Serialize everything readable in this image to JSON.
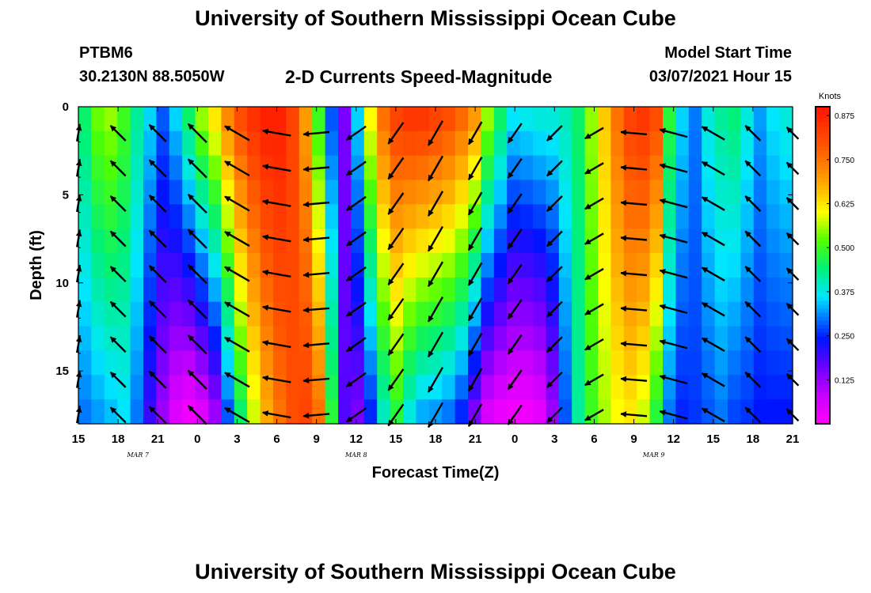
{
  "header": {
    "title": "University of Southern Mississippi Ocean Cube",
    "station_id": "PTBM6",
    "coordinates": "30.2130N 88.5050W",
    "subtitle": "2-D Currents Speed-Magnitude",
    "model_start_label": "Model Start Time",
    "model_start_value": "03/07/2021 Hour 15"
  },
  "footer": {
    "title": "University of Southern Mississippi Ocean Cube"
  },
  "chart_data": {
    "type": "heatmap",
    "title": "2-D Currents Speed-Magnitude",
    "xlabel": "Forecast Time(Z)",
    "ylabel": "Depth (ft)",
    "x_tick_labels": [
      "15",
      "18",
      "21",
      "0",
      "3",
      "6",
      "9",
      "12",
      "15",
      "18",
      "21",
      "0",
      "3",
      "6",
      "9",
      "12",
      "15",
      "18",
      "21"
    ],
    "date_labels": [
      {
        "label": "MAR 7",
        "tick_index": 1.5
      },
      {
        "label": "MAR 8",
        "tick_index": 7
      },
      {
        "label": "MAR 9",
        "tick_index": 14.5
      }
    ],
    "x_range_hours": [
      0,
      54
    ],
    "y_ticks": [
      0,
      5,
      10,
      15
    ],
    "ylim": [
      0,
      18
    ],
    "y_inverted": true,
    "colorbar": {
      "label": "Knots",
      "ticks": [
        0.125,
        0.25,
        0.375,
        0.5,
        0.625,
        0.75,
        0.875
      ],
      "range": [
        0.0,
        0.9
      ]
    },
    "depths_ft": [
      0,
      1.5,
      3,
      4.5,
      6,
      7.5,
      9,
      10.5,
      12,
      13.5,
      15,
      16.5,
      18
    ],
    "speed_hours": [
      0,
      1,
      2,
      3,
      4,
      5,
      6,
      7,
      8,
      9,
      10,
      11,
      12,
      13,
      14,
      15,
      16,
      17,
      18,
      19,
      20,
      21,
      22,
      23,
      24,
      25,
      26,
      27,
      28,
      29,
      30,
      31,
      32,
      33,
      34,
      35,
      36,
      37,
      38,
      39,
      40,
      41,
      42,
      43,
      44,
      45,
      46,
      47,
      48,
      49,
      50,
      51,
      52,
      53,
      54
    ],
    "speed_surface": [
      0.45,
      0.53,
      0.55,
      0.5,
      0.42,
      0.35,
      0.28,
      0.35,
      0.45,
      0.55,
      0.62,
      0.72,
      0.8,
      0.85,
      0.88,
      0.88,
      0.82,
      0.7,
      0.5,
      0.28,
      0.15,
      0.35,
      0.6,
      0.75,
      0.82,
      0.84,
      0.84,
      0.82,
      0.8,
      0.76,
      0.7,
      0.55,
      0.45,
      0.36,
      0.37,
      0.38,
      0.38,
      0.4,
      0.45,
      0.55,
      0.65,
      0.75,
      0.82,
      0.84,
      0.8,
      0.48,
      0.35,
      0.3,
      0.38,
      0.42,
      0.44,
      0.38,
      0.32,
      0.36,
      0.38
    ],
    "speed_bottom": [
      0.3,
      0.32,
      0.34,
      0.36,
      0.3,
      0.2,
      0.12,
      0.05,
      0.02,
      0.05,
      0.12,
      0.28,
      0.45,
      0.58,
      0.68,
      0.75,
      0.8,
      0.82,
      0.75,
      0.48,
      0.18,
      0.15,
      0.25,
      0.4,
      0.48,
      0.38,
      0.33,
      0.32,
      0.3,
      0.25,
      0.15,
      0.06,
      0.03,
      0.02,
      0.02,
      0.04,
      0.12,
      0.28,
      0.42,
      0.5,
      0.56,
      0.6,
      0.62,
      0.58,
      0.48,
      0.3,
      0.25,
      0.26,
      0.28,
      0.3,
      0.27,
      0.26,
      0.24,
      0.24,
      0.24
    ],
    "vector_hours": [
      0,
      3,
      6,
      9,
      12,
      15,
      18,
      21,
      24,
      27,
      30,
      33,
      36,
      39,
      42,
      45,
      48,
      51,
      54
    ],
    "vector_depths_ft": [
      1.5,
      3.5,
      5.5,
      7.5,
      9.5,
      11.5,
      13.5,
      15.5,
      17.5
    ],
    "vector_angles_deg": [
      80,
      135,
      135,
      135,
      150,
      170,
      185,
      215,
      235,
      240,
      240,
      235,
      225,
      210,
      175,
      165,
      150,
      135,
      135
    ],
    "vector_length_knots": [
      0.35,
      0.45,
      0.5,
      0.55,
      0.6,
      0.6,
      0.55,
      0.5,
      0.55,
      0.6,
      0.55,
      0.5,
      0.45,
      0.45,
      0.55,
      0.6,
      0.55,
      0.45,
      0.35
    ]
  }
}
